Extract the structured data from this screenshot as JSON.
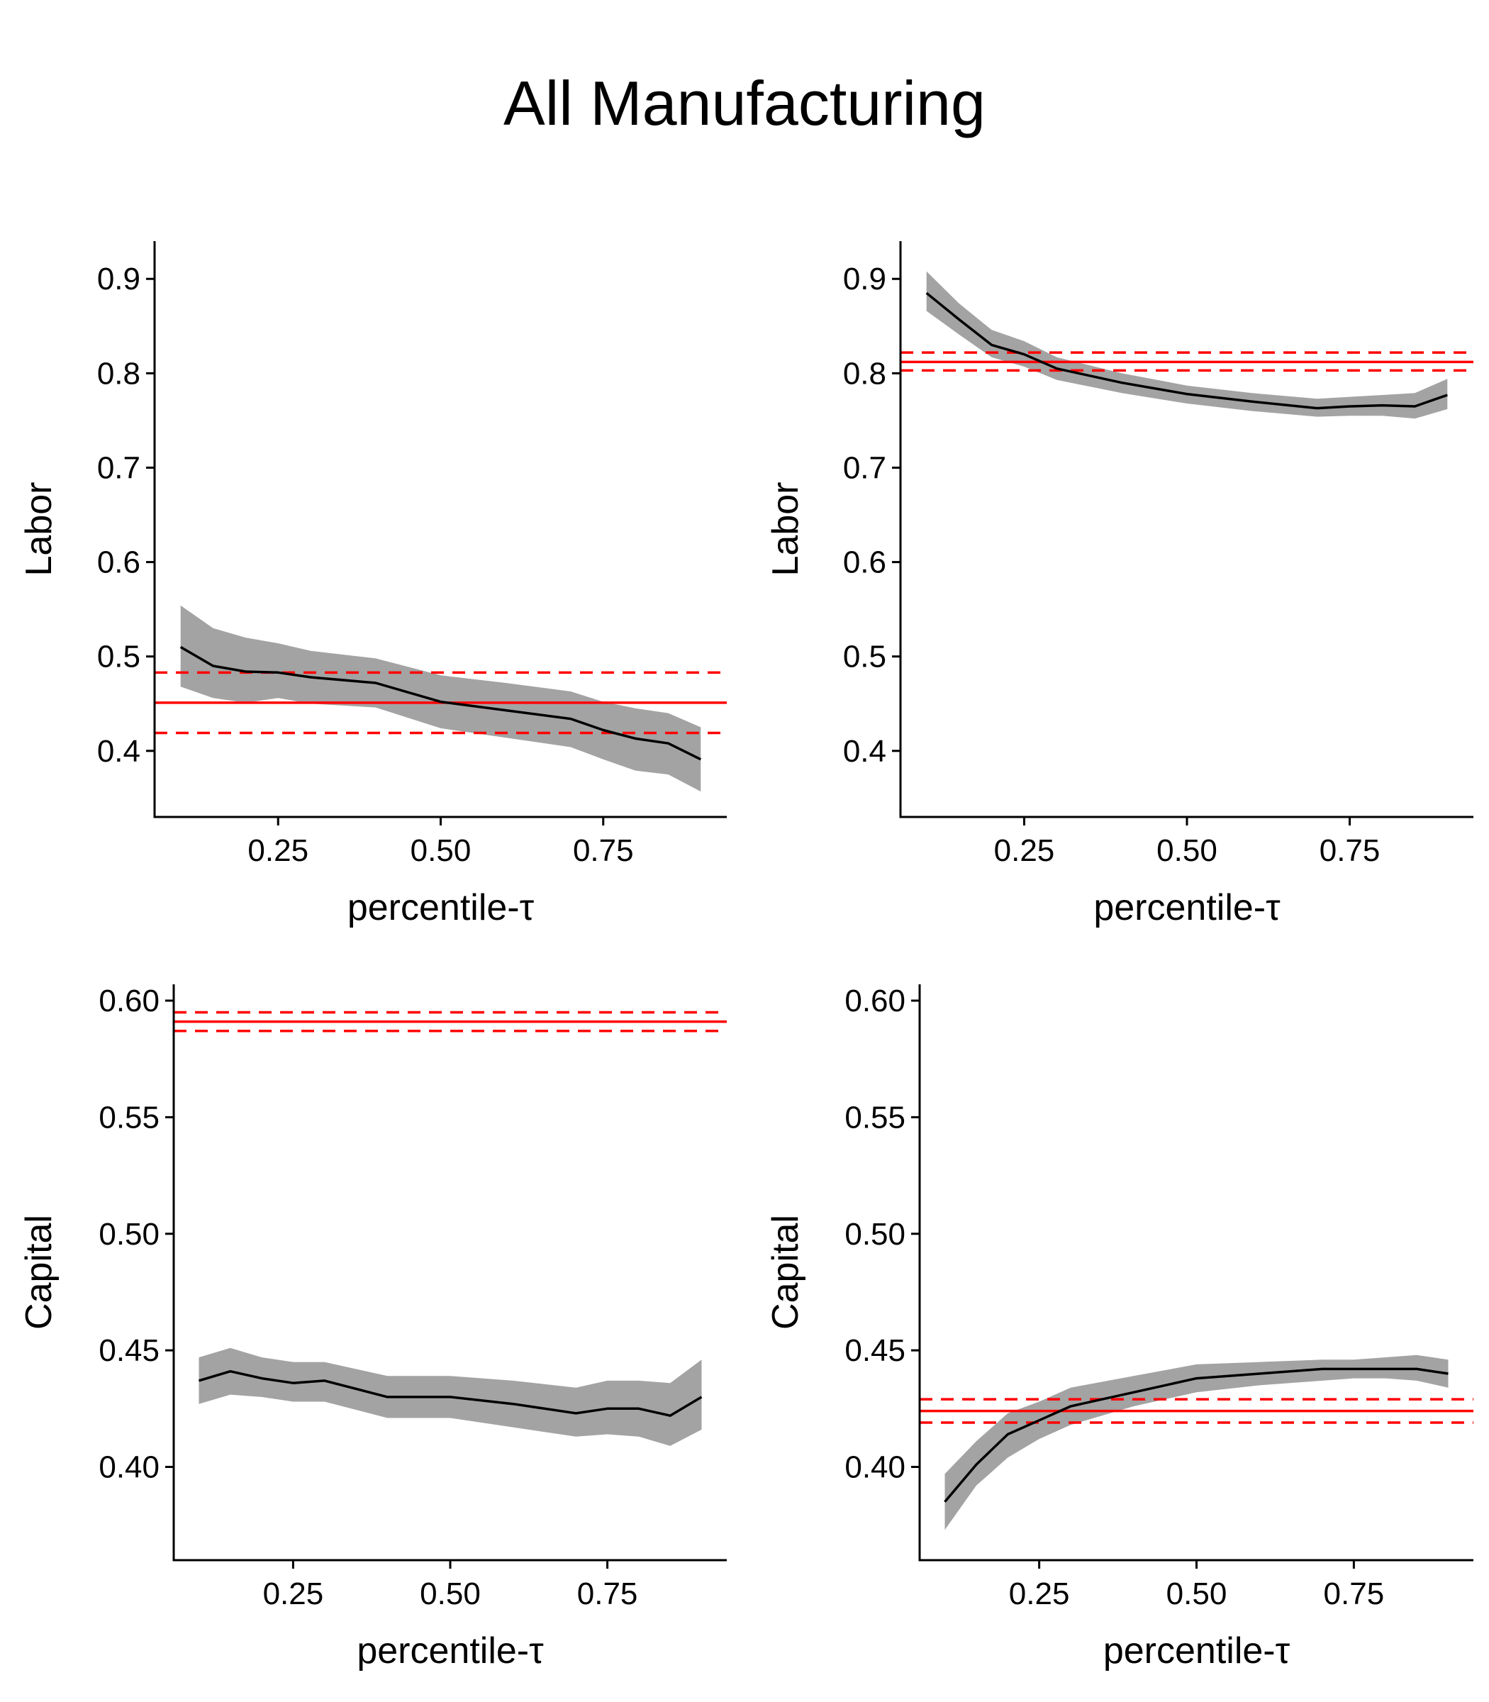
{
  "title": "All Manufacturing",
  "colors": {
    "band": "#a3a3a3",
    "line": "#000000",
    "reference": "#ff0000"
  },
  "chart_data": [
    {
      "type": "line",
      "panel": "top-left",
      "title": "",
      "xlabel": "percentile-τ",
      "ylabel": "Labor",
      "xlim": [
        0.06,
        0.94
      ],
      "ylim": [
        0.33,
        0.94
      ],
      "xticks": [
        "0.25",
        "0.50",
        "0.75"
      ],
      "yticks": [
        "0.4",
        "0.5",
        "0.6",
        "0.7",
        "0.8",
        "0.9"
      ],
      "x": [
        0.1,
        0.15,
        0.2,
        0.25,
        0.3,
        0.4,
        0.5,
        0.6,
        0.7,
        0.75,
        0.8,
        0.85,
        0.9
      ],
      "estimate": [
        0.51,
        0.49,
        0.484,
        0.483,
        0.478,
        0.472,
        0.452,
        0.443,
        0.434,
        0.422,
        0.413,
        0.408,
        0.391
      ],
      "ci_lower": [
        0.468,
        0.456,
        0.451,
        0.456,
        0.45,
        0.446,
        0.424,
        0.414,
        0.404,
        0.391,
        0.379,
        0.375,
        0.357
      ],
      "ci_upper": [
        0.554,
        0.53,
        0.52,
        0.514,
        0.506,
        0.498,
        0.48,
        0.472,
        0.463,
        0.452,
        0.445,
        0.44,
        0.425
      ],
      "reference": {
        "value": 0.451,
        "lower": 0.419,
        "upper": 0.483
      },
      "grid": false
    },
    {
      "type": "line",
      "panel": "top-right",
      "title": "",
      "xlabel": "percentile-τ",
      "ylabel": "Labor",
      "xlim": [
        0.06,
        0.94
      ],
      "ylim": [
        0.33,
        0.94
      ],
      "xticks": [
        "0.25",
        "0.50",
        "0.75"
      ],
      "yticks": [
        "0.4",
        "0.5",
        "0.6",
        "0.7",
        "0.8",
        "0.9"
      ],
      "x": [
        0.1,
        0.15,
        0.2,
        0.25,
        0.3,
        0.4,
        0.5,
        0.6,
        0.7,
        0.75,
        0.8,
        0.85,
        0.9
      ],
      "estimate": [
        0.885,
        0.857,
        0.83,
        0.82,
        0.805,
        0.79,
        0.778,
        0.77,
        0.763,
        0.765,
        0.766,
        0.765,
        0.777
      ],
      "ci_lower": [
        0.866,
        0.841,
        0.817,
        0.807,
        0.793,
        0.779,
        0.768,
        0.76,
        0.754,
        0.755,
        0.755,
        0.752,
        0.762
      ],
      "ci_upper": [
        0.908,
        0.874,
        0.846,
        0.834,
        0.817,
        0.8,
        0.787,
        0.779,
        0.773,
        0.775,
        0.777,
        0.779,
        0.794
      ],
      "reference": {
        "value": 0.812,
        "lower": 0.803,
        "upper": 0.822
      },
      "grid": false
    },
    {
      "type": "line",
      "panel": "bottom-left",
      "title": "",
      "xlabel": "percentile-τ",
      "ylabel": "Capital",
      "xlim": [
        0.06,
        0.94
      ],
      "ylim": [
        0.36,
        0.607
      ],
      "xticks": [
        "0.25",
        "0.50",
        "0.75"
      ],
      "yticks": [
        "0.40",
        "0.45",
        "0.50",
        "0.55",
        "0.60"
      ],
      "x": [
        0.1,
        0.15,
        0.2,
        0.25,
        0.3,
        0.4,
        0.5,
        0.6,
        0.7,
        0.75,
        0.8,
        0.85,
        0.9
      ],
      "estimate": [
        0.437,
        0.441,
        0.438,
        0.436,
        0.437,
        0.43,
        0.43,
        0.427,
        0.423,
        0.425,
        0.425,
        0.422,
        0.43
      ],
      "ci_lower": [
        0.427,
        0.431,
        0.43,
        0.428,
        0.428,
        0.421,
        0.421,
        0.417,
        0.413,
        0.414,
        0.413,
        0.409,
        0.416
      ],
      "ci_upper": [
        0.447,
        0.451,
        0.447,
        0.445,
        0.445,
        0.439,
        0.439,
        0.437,
        0.434,
        0.437,
        0.437,
        0.436,
        0.446
      ],
      "reference": {
        "value": 0.591,
        "lower": 0.587,
        "upper": 0.595
      },
      "grid": false
    },
    {
      "type": "line",
      "panel": "bottom-right",
      "title": "",
      "xlabel": "percentile-τ",
      "ylabel": "Capital",
      "xlim": [
        0.06,
        0.94
      ],
      "ylim": [
        0.36,
        0.607
      ],
      "xticks": [
        "0.25",
        "0.50",
        "0.75"
      ],
      "yticks": [
        "0.40",
        "0.45",
        "0.50",
        "0.55",
        "0.60"
      ],
      "x": [
        0.1,
        0.15,
        0.2,
        0.25,
        0.3,
        0.4,
        0.5,
        0.6,
        0.7,
        0.75,
        0.8,
        0.85,
        0.9
      ],
      "estimate": [
        0.385,
        0.401,
        0.414,
        0.42,
        0.426,
        0.432,
        0.438,
        0.44,
        0.442,
        0.442,
        0.442,
        0.442,
        0.44
      ],
      "ci_lower": [
        0.373,
        0.392,
        0.404,
        0.412,
        0.418,
        0.426,
        0.432,
        0.435,
        0.437,
        0.438,
        0.438,
        0.437,
        0.434
      ],
      "ci_upper": [
        0.397,
        0.411,
        0.423,
        0.428,
        0.434,
        0.439,
        0.444,
        0.445,
        0.446,
        0.446,
        0.447,
        0.448,
        0.446
      ],
      "reference": {
        "value": 0.424,
        "lower": 0.419,
        "upper": 0.429
      },
      "grid": false
    }
  ]
}
